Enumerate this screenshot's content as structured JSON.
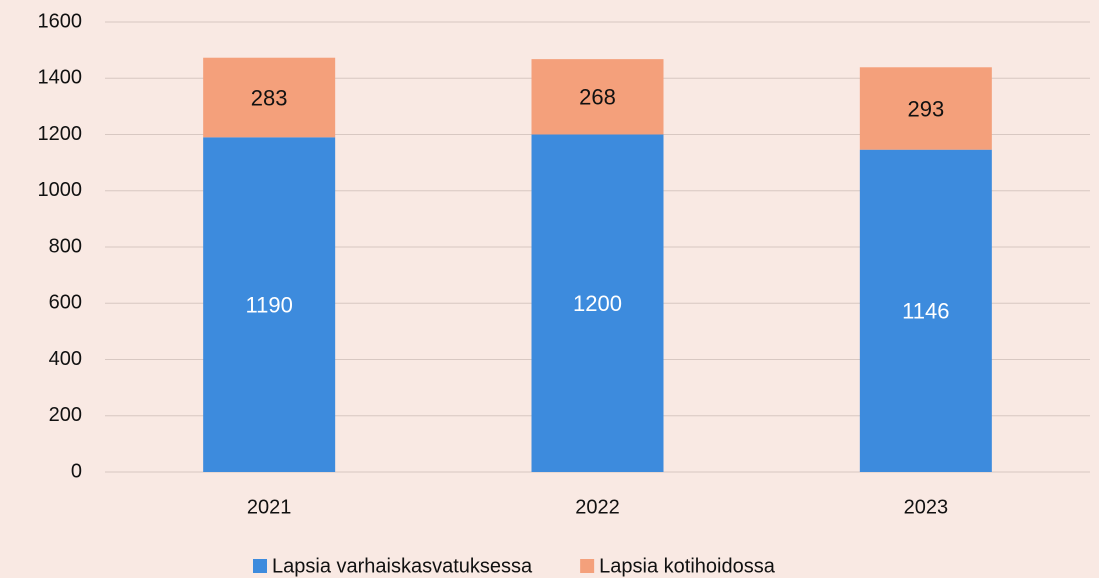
{
  "chart_data": {
    "type": "bar",
    "stacked": true,
    "categories": [
      "2021",
      "2022",
      "2023"
    ],
    "series": [
      {
        "name": "Lapsia varhaiskasvatuksessa",
        "color": "#3d8bdd",
        "values": [
          1190,
          1200,
          1146
        ]
      },
      {
        "name": "Lapsia kotihoidossa",
        "color": "#f4a07b",
        "values": [
          283,
          268,
          293
        ]
      }
    ],
    "ylim": [
      0,
      1600
    ],
    "yticks": [
      0,
      200,
      400,
      600,
      800,
      1000,
      1200,
      1400,
      1600
    ],
    "grid": true,
    "legend": "bottom"
  }
}
